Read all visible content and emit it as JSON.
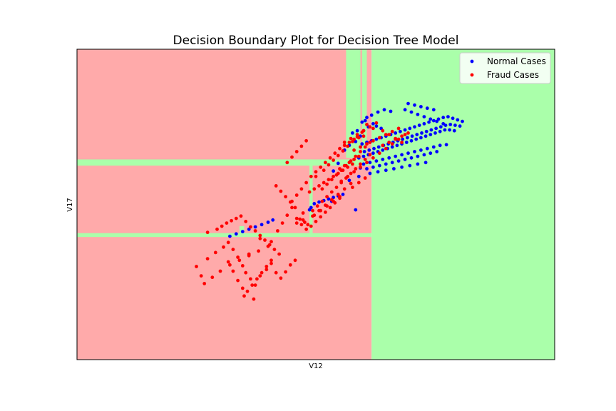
{
  "chart_data": {
    "type": "scatter",
    "title": "Decision Boundary Plot for Decision Tree Model",
    "xlabel": "V12",
    "ylabel": "V17",
    "xlim": [
      -20,
      10
    ],
    "ylim": [
      -30,
      10
    ],
    "show_ticks": false,
    "grid": false,
    "legend_position": "top-right",
    "colors": {
      "fraud_region": "#ffaaaa",
      "normal_region": "#aaffaa",
      "normal_points": "#0000ff",
      "fraud_points": "#ff0000"
    },
    "regions": [
      {
        "class": "Fraud Cases",
        "x": [
          -20,
          -1.5
        ],
        "y": [
          -30,
          10
        ]
      },
      {
        "class": "Normal Cases",
        "x": [
          -1.5,
          10
        ],
        "y": [
          -30,
          10
        ]
      },
      {
        "class": "Normal Cases",
        "x": [
          -3.1,
          -2.2
        ],
        "y": [
          -4,
          10
        ]
      },
      {
        "class": "Normal Cases",
        "x": [
          -2.1,
          -1.8
        ],
        "y": [
          -4,
          10
        ]
      },
      {
        "class": "Normal Cases",
        "x": [
          -20,
          -1.5
        ],
        "y": [
          -5.0,
          -4.2
        ]
      },
      {
        "class": "Normal Cases",
        "x": [
          -20,
          -1.5
        ],
        "y": [
          -14.2,
          -13.7
        ]
      },
      {
        "class": "Normal Cases",
        "x": [
          -5.4,
          -5.2
        ],
        "y": [
          -13.7,
          -4.2
        ]
      },
      {
        "class": "Normal Cases",
        "x": [
          -9.8,
          -9.5
        ],
        "y": [
          -14.2,
          -12.8
        ]
      }
    ],
    "series": [
      {
        "name": "Normal Cases",
        "color": "#0000ff",
        "x": [
          -2.1,
          -1.8,
          -1.5,
          -1.2,
          -0.9,
          -0.6,
          -0.3,
          0.0,
          0.3,
          0.6,
          0.9,
          1.2,
          1.5,
          1.8,
          2.1,
          2.4,
          2.7,
          3.0,
          3.3,
          3.6,
          3.9,
          4.2,
          -1.95,
          -1.65,
          -1.35,
          -1.05,
          -0.75,
          -0.45,
          -0.15,
          0.15,
          0.45,
          0.75,
          1.05,
          1.35,
          1.65,
          1.95,
          2.25,
          2.55,
          2.85,
          3.15,
          3.45,
          3.75,
          4.05,
          -2.3,
          -2.0,
          -1.7,
          -1.4,
          -1.1,
          -0.8,
          -0.5,
          -0.2,
          0.1,
          0.4,
          0.7,
          1.0,
          1.3,
          1.6,
          1.9,
          2.2,
          2.5,
          2.8,
          3.1,
          3.4,
          3.7,
          -2.0,
          -1.6,
          -1.2,
          -0.8,
          -0.4,
          0.0,
          0.4,
          0.8,
          1.2,
          1.6,
          2.0,
          2.4,
          2.8,
          3.2,
          -1.8,
          -1.4,
          -1.0,
          -0.6,
          -0.2,
          0.2,
          0.6,
          1.0,
          1.4,
          1.8,
          2.2,
          2.6,
          -1.6,
          -1.1,
          -0.6,
          -0.1,
          0.4,
          0.9,
          1.4,
          1.9,
          0.6,
          1.0,
          1.4,
          1.8,
          2.2,
          2.6,
          3.0,
          0.8,
          1.2,
          1.6,
          2.0,
          2.4,
          -1.9,
          -1.5,
          -1.1,
          -0.7,
          -0.3,
          -2.4,
          -2.1,
          -1.8,
          -2.7,
          -2.9,
          -3.2,
          -3.6,
          -2.5,
          -2.2,
          -2.0,
          -1.7,
          -1.4,
          -1.2,
          -0.9,
          -5.1,
          -4.8,
          -4.5,
          -4.2,
          -3.9,
          -3.6,
          -3.3,
          -4.0,
          -5.3,
          -5.4,
          -10.4,
          -10.0,
          -9.6,
          -9.2,
          -8.8,
          -8.4,
          -8.0,
          -7.7,
          -3.9,
          -2.9,
          -2.5,
          -2.3,
          -2.2
        ],
        "y": [
          -2.2,
          -2.0,
          -1.8,
          -1.6,
          -1.4,
          -1.2,
          -1.0,
          -0.8,
          -0.6,
          -0.4,
          -0.2,
          0.0,
          0.2,
          0.4,
          0.6,
          0.8,
          1.0,
          1.2,
          1.3,
          1.1,
          0.9,
          0.7,
          -3.2,
          -3.0,
          -2.8,
          -2.6,
          -2.4,
          -2.2,
          -2.0,
          -1.8,
          -1.6,
          -1.4,
          -1.2,
          -1.0,
          -0.8,
          -0.6,
          -0.4,
          -0.2,
          0.0,
          0.2,
          0.3,
          0.2,
          0.1,
          -4.0,
          -3.8,
          -3.6,
          -3.4,
          -3.2,
          -3.0,
          -2.8,
          -2.6,
          -2.4,
          -2.2,
          -2.0,
          -1.8,
          -1.6,
          -1.4,
          -1.2,
          -1.0,
          -0.8,
          -0.6,
          -0.4,
          -0.4,
          -0.5,
          -4.8,
          -4.6,
          -4.4,
          -4.2,
          -4.0,
          -3.8,
          -3.6,
          -3.4,
          -3.2,
          -3.0,
          -2.8,
          -2.6,
          -2.4,
          -2.3,
          -5.4,
          -5.2,
          -5.0,
          -4.8,
          -4.6,
          -4.4,
          -4.2,
          -4.0,
          -3.8,
          -3.6,
          -3.4,
          -3.2,
          -6.0,
          -5.8,
          -5.6,
          -5.4,
          -5.2,
          -5.0,
          -4.8,
          -4.6,
          2.2,
          1.9,
          1.6,
          1.3,
          1.0,
          0.7,
          0.4,
          3.0,
          2.8,
          2.6,
          2.4,
          2.2,
          0.8,
          1.5,
          1.9,
          2.2,
          2.0,
          -0.5,
          0.6,
          1.2,
          -0.8,
          -2.4,
          -3.0,
          -4.7,
          -1.9,
          -1.2,
          -0.5,
          0.0,
          0.4,
          0.1,
          -0.2,
          -9.9,
          -9.7,
          -9.5,
          -9.3,
          -9.1,
          -8.9,
          -8.7,
          -9.6,
          -10.4,
          -10.7,
          -14.1,
          -13.8,
          -13.5,
          -13.2,
          -12.9,
          -12.6,
          -12.3,
          -12.0,
          -5.7,
          -6.9,
          -10.7,
          -6.4,
          -5.3
        ]
      },
      {
        "name": "Fraud Cases",
        "color": "#ff0000",
        "x": [
          -12.2,
          -12.5,
          -11.8,
          -11.3,
          -10.8,
          -10.5,
          -10.2,
          -9.9,
          -9.6,
          -9.4,
          -9.1,
          -8.8,
          -8.5,
          -8.1,
          -7.8,
          -7.5,
          -7.2,
          -6.9,
          -6.6,
          -6.3,
          -11.8,
          -11.2,
          -10.9,
          -10.6,
          -10.3,
          -10.0,
          -9.7,
          -9.4,
          -9.1,
          -8.8,
          -8.5,
          -8.2,
          -7.9,
          -7.6,
          -7.3,
          -12.0,
          -11.5,
          -11.0,
          -10.4,
          -9.8,
          -9.2,
          -8.6,
          -8.0,
          -9.6,
          -9.3,
          -9.0,
          -8.7,
          -8.4,
          -8.1,
          -7.8,
          -9.9,
          -10.2,
          -10.5,
          -9.5,
          -8.9,
          -9.2,
          -8.5,
          -7.8,
          -7.4,
          -7.1,
          -6.8,
          -6.5,
          -6.2,
          -5.9,
          -5.6,
          -5.3,
          -5.0,
          -4.7,
          -4.4,
          -4.1,
          -3.8,
          -3.5,
          -6.5,
          -6.2,
          -5.9,
          -5.6,
          -5.3,
          -5.0,
          -4.7,
          -4.4,
          -4.1,
          -3.8,
          -3.5,
          -3.2,
          -2.9,
          -2.6,
          -2.3,
          -2.0,
          -5.2,
          -4.9,
          -4.6,
          -4.3,
          -4.0,
          -3.7,
          -3.4,
          -3.1,
          -2.8,
          -2.5,
          -2.2,
          -1.9,
          -1.6,
          -4.6,
          -4.3,
          -4.0,
          -3.7,
          -3.4,
          -3.1,
          -2.8,
          -2.5,
          -2.2,
          -1.9,
          -1.6,
          -3.4,
          -3.0,
          -2.6,
          -2.2,
          -1.8,
          -1.4,
          -1.0,
          -0.6,
          -0.2,
          0.2,
          0.6,
          -3.2,
          -2.8,
          -2.4,
          -2.0,
          -1.6,
          -1.2,
          -0.8,
          -0.4,
          0.0,
          0.4,
          -2.6,
          -2.2,
          -1.8,
          -1.4,
          -1.0,
          -0.6,
          -0.2,
          0.2,
          -6.0,
          -5.7,
          -5.5,
          -5.8,
          -6.3,
          -6.6,
          -6.9,
          -7.2,
          -7.5,
          -5.2,
          -4.8,
          -4.4,
          -4.0,
          -3.6,
          -3.2,
          -2.8,
          -5.0,
          -4.5,
          -4.2,
          -3.9,
          -3.6,
          -3.3,
          -3.0,
          -2.7,
          -2.4,
          -2.1,
          -5.4,
          -5.1,
          -4.8,
          -4.5,
          -4.2,
          -3.9,
          -3.6,
          -3.3,
          -3.0,
          -2.7,
          -6.8,
          -6.5,
          -6.2,
          -5.9,
          -5.6,
          -3.5,
          -3.2,
          -2.9,
          -2.6,
          -2.3,
          -0.8,
          -0.4,
          0.0,
          0.4,
          0.8,
          -1.4,
          -1.8,
          -6.2,
          -5.8,
          -5.1,
          -4.7,
          -4.3,
          -3.9,
          -3.5,
          -2.7,
          -2.3,
          -1.9
        ],
        "y": [
          -19.2,
          -18.0,
          -17.0,
          -16.2,
          -15.5,
          -14.9,
          -15.8,
          -16.8,
          -17.9,
          -18.8,
          -19.6,
          -20.4,
          -19.2,
          -18.4,
          -17.6,
          -18.8,
          -19.5,
          -18.7,
          -17.8,
          -17.2,
          -13.6,
          -13.2,
          -12.8,
          -12.4,
          -12.1,
          -11.8,
          -11.5,
          -12.2,
          -12.9,
          -13.4,
          -14.0,
          -14.6,
          -15.2,
          -15.8,
          -16.4,
          -20.2,
          -19.4,
          -18.6,
          -17.8,
          -17.2,
          -16.6,
          -16.0,
          -15.4,
          -20.8,
          -21.2,
          -20.4,
          -19.6,
          -18.8,
          -18.0,
          -17.2,
          -19.8,
          -18.6,
          -17.4,
          -21.8,
          -22.2,
          -16.4,
          -14.4,
          -14.8,
          -13.4,
          -12.4,
          -11.4,
          -10.4,
          -11.8,
          -12.6,
          -13.2,
          -12.8,
          -12.2,
          -11.6,
          -11.0,
          -10.4,
          -9.8,
          -9.2,
          -9.6,
          -8.8,
          -8.0,
          -7.2,
          -6.4,
          -5.8,
          -5.2,
          -4.6,
          -4.0,
          -3.4,
          -2.8,
          -2.4,
          -2.0,
          -1.6,
          -1.4,
          -1.2,
          -10.8,
          -10.2,
          -9.6,
          -9.0,
          -8.4,
          -7.8,
          -7.2,
          -6.6,
          -6.0,
          -5.4,
          -4.8,
          -4.2,
          -3.6,
          -8.0,
          -7.4,
          -6.8,
          -6.2,
          -5.6,
          -5.0,
          -4.4,
          -3.8,
          -3.2,
          -2.6,
          -2.0,
          -7.0,
          -6.4,
          -5.8,
          -5.2,
          -4.6,
          -4.0,
          -3.4,
          -2.8,
          -2.2,
          -1.6,
          -1.0,
          -2.0,
          -1.5,
          -1.0,
          -0.5,
          0.0,
          0.5,
          -0.5,
          -1.0,
          -1.5,
          -2.0,
          -3.0,
          -2.6,
          -2.2,
          -1.8,
          -1.4,
          -1.0,
          -0.6,
          -0.2,
          -11.9,
          -12.3,
          -12.6,
          -11.1,
          -10.4,
          -9.7,
          -9.0,
          -8.3,
          -7.6,
          -11.5,
          -10.8,
          -10.1,
          -9.4,
          -8.7,
          -8.0,
          -7.3,
          -6.4,
          -5.6,
          -4.9,
          -4.3,
          -3.7,
          -3.1,
          -2.5,
          -1.9,
          -1.3,
          -0.7,
          -8.4,
          -8.0,
          -7.6,
          -7.2,
          -6.8,
          -6.4,
          -6.0,
          -5.6,
          -5.2,
          -4.8,
          -4.6,
          -3.9,
          -3.2,
          -2.5,
          -1.8,
          -5.4,
          -5.0,
          -4.6,
          -4.2,
          -3.8,
          -2.4,
          -2.0,
          -1.6,
          -1.2,
          -0.8,
          -0.2,
          0.3,
          -12.4,
          -12.0,
          -11.4,
          -10.8,
          -10.2,
          -9.6,
          -9.0,
          -7.8,
          -7.2,
          -6.6
        ]
      }
    ]
  }
}
